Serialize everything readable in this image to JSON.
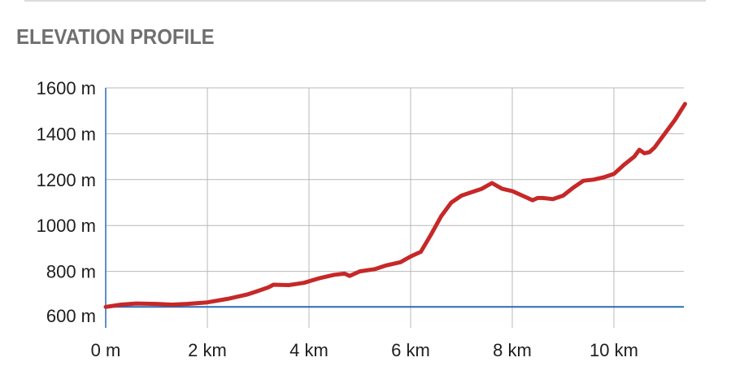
{
  "header": {
    "title": "ELEVATION PROFILE"
  },
  "colors": {
    "line": "#c62828",
    "baseline": "#2a6ab5",
    "grid": "#b8b8b8",
    "title": "#6f6f6f"
  },
  "chart_data": {
    "type": "line",
    "title": "",
    "xlabel": "",
    "ylabel": "",
    "xlim": [
      0,
      11.4
    ],
    "ylim": [
      600,
      1600
    ],
    "grid": true,
    "legend": "none",
    "x_ticks": [
      {
        "value": 0,
        "label": "0 m"
      },
      {
        "value": 2,
        "label": "2 km"
      },
      {
        "value": 4,
        "label": "4 km"
      },
      {
        "value": 6,
        "label": "6 km"
      },
      {
        "value": 8,
        "label": "8 km"
      },
      {
        "value": 10,
        "label": "10 km"
      }
    ],
    "y_ticks": [
      {
        "value": 600,
        "label": "600 m"
      },
      {
        "value": 800,
        "label": "800 m"
      },
      {
        "value": 1000,
        "label": "1000 m"
      },
      {
        "value": 1200,
        "label": "1200 m"
      },
      {
        "value": 1400,
        "label": "1400 m"
      },
      {
        "value": 1600,
        "label": "1600 m"
      }
    ],
    "baseline": 645,
    "series": [
      {
        "x": [
          0,
          0.3,
          0.6,
          1.0,
          1.3,
          1.6,
          2.0,
          2.4,
          2.8,
          3.0,
          3.2,
          3.3,
          3.6,
          3.9,
          4.2,
          4.5,
          4.7,
          4.8,
          5.0,
          5.3,
          5.5,
          5.8,
          6.0,
          6.2,
          6.4,
          6.6,
          6.8,
          7.0,
          7.2,
          7.4,
          7.6,
          7.8,
          8.0,
          8.2,
          8.4,
          8.5,
          8.6,
          8.8,
          9.0,
          9.2,
          9.4,
          9.6,
          9.8,
          10.0,
          10.2,
          10.4,
          10.5,
          10.6,
          10.7,
          10.8,
          11.0,
          11.2,
          11.4
        ],
        "values": [
          645,
          655,
          660,
          658,
          655,
          658,
          665,
          680,
          700,
          715,
          730,
          742,
          740,
          750,
          770,
          785,
          790,
          780,
          800,
          810,
          825,
          840,
          865,
          885,
          960,
          1040,
          1100,
          1130,
          1145,
          1160,
          1185,
          1160,
          1150,
          1130,
          1110,
          1120,
          1120,
          1115,
          1130,
          1165,
          1195,
          1200,
          1210,
          1225,
          1265,
          1300,
          1330,
          1315,
          1320,
          1340,
          1400,
          1460,
          1530
        ]
      }
    ]
  }
}
